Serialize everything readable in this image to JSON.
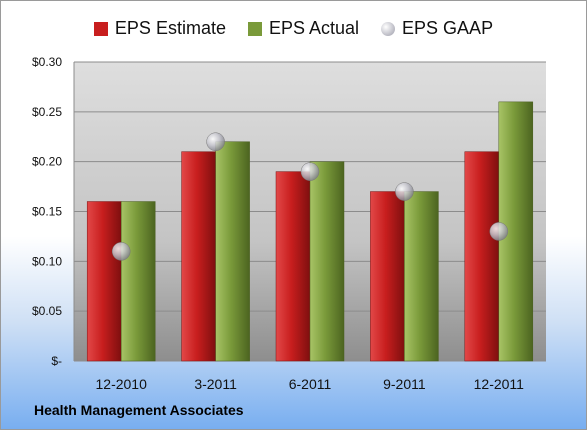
{
  "company": "Health Management Associates",
  "colors": {
    "estimate": "#c81e1e",
    "actual": "#7a9a3a",
    "gaap": "#b8b8c2"
  },
  "chart_data": {
    "type": "bar",
    "categories": [
      "12-2010",
      "3-2011",
      "6-2011",
      "9-2011",
      "12-2011"
    ],
    "series": [
      {
        "name": "EPS Estimate",
        "type": "bar",
        "values": [
          0.16,
          0.21,
          0.19,
          0.17,
          0.21
        ]
      },
      {
        "name": "EPS Actual",
        "type": "bar",
        "values": [
          0.16,
          0.22,
          0.2,
          0.17,
          0.26
        ]
      },
      {
        "name": "EPS GAAP",
        "type": "scatter",
        "values": [
          0.11,
          0.22,
          0.19,
          0.17,
          0.13
        ]
      }
    ],
    "yticks": [
      "$-",
      "$0.05",
      "$0.10",
      "$0.15",
      "$0.20",
      "$0.25",
      "$0.30"
    ],
    "ylim": [
      0,
      0.3
    ],
    "grid": true,
    "legend_position": "top"
  }
}
